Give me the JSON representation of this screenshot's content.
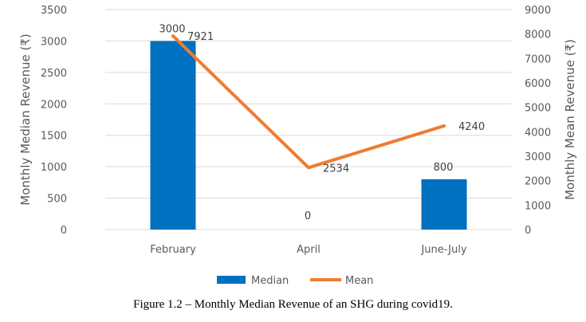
{
  "chart_data": {
    "type": "bar+line",
    "categories": [
      "February",
      "April",
      "June-July"
    ],
    "series": [
      {
        "name": "Median",
        "type": "bar",
        "axis": "left",
        "values": [
          3000,
          0,
          800
        ],
        "color": "#0070C0"
      },
      {
        "name": "Mean",
        "type": "line",
        "axis": "right",
        "values": [
          7921,
          2534,
          4240
        ],
        "color": "#ED7D31"
      }
    ],
    "ylabel_left": "Monthly Median Revenue (₹)",
    "ylabel_right": "Monthly Mean Revenue (₹)",
    "ylim_left": [
      0,
      3500
    ],
    "ylim_right": [
      0,
      9000
    ],
    "yticks_left": [
      0,
      500,
      1000,
      1500,
      2000,
      2500,
      3000,
      3500
    ],
    "yticks_right": [
      0,
      1000,
      2000,
      3000,
      4000,
      5000,
      6000,
      7000,
      8000,
      9000
    ],
    "grid": true,
    "legend": "bottom"
  },
  "caption": "Figure 1.2 – Monthly Median Revenue of an SHG during covid19."
}
